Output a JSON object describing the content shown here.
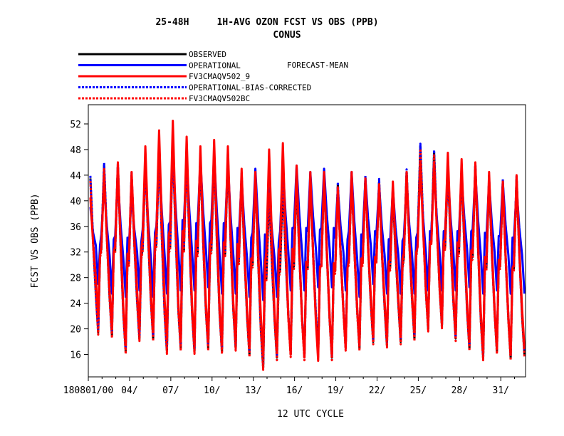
{
  "chart_data": {
    "type": "line",
    "title": "25-48H     1H-AVG OZON FCST VS OBS (PPB)",
    "subtitle": "CONUS",
    "xlabel": "12 UTC CYCLE",
    "ylabel": "FCST VS OBS (PPB)",
    "ylim": [
      12.5,
      55.0
    ],
    "yticks": [
      16,
      20,
      24,
      28,
      32,
      36,
      40,
      44,
      48,
      52
    ],
    "xlim": [
      0,
      31.8
    ],
    "xticks": [
      {
        "day": 0,
        "label": "180801/00"
      },
      {
        "day": 3,
        "label": "04/"
      },
      {
        "day": 6,
        "label": "07/"
      },
      {
        "day": 9,
        "label": "10/"
      },
      {
        "day": 12,
        "label": "13/"
      },
      {
        "day": 15,
        "label": "16/"
      },
      {
        "day": 18,
        "label": "19/"
      },
      {
        "day": 21,
        "label": "22/"
      },
      {
        "day": 24,
        "label": "25/"
      },
      {
        "day": 27,
        "label": "28/"
      },
      {
        "day": 30,
        "label": "31/"
      }
    ],
    "legend_extra": "FORECAST-MEAN",
    "daily_max": {
      "observed": [
        43.5,
        45.5,
        45.5,
        44,
        46.5,
        48,
        49,
        47.5,
        47,
        47.5,
        47,
        44,
        44,
        41.5,
        43,
        43.5,
        43.5,
        44,
        42.5,
        44,
        43.5,
        43,
        41.5,
        44.5,
        48.5,
        47.5,
        45,
        45,
        45.5,
        43.5,
        43,
        43.5
      ],
      "operational": [
        39,
        42.5,
        43.5,
        41,
        45,
        47,
        48,
        47,
        46.5,
        47.5,
        46,
        43.5,
        45,
        42,
        45.5,
        45.5,
        44.5,
        45,
        42,
        44.5,
        43.5,
        42.5,
        42,
        43,
        44.5,
        44.5,
        44.5,
        44,
        44.5,
        43,
        43,
        42
      ],
      "fv3": [
        40.5,
        44,
        46,
        44.5,
        48.5,
        51,
        52.5,
        50,
        48.5,
        49.5,
        48.5,
        45,
        44.5,
        48,
        49,
        45.5,
        44.5,
        44.5,
        42,
        44.5,
        43.5,
        42.5,
        43,
        44.5,
        46,
        46,
        47.5,
        46.5,
        46,
        44.5,
        43,
        44
      ]
    },
    "daily_min": {
      "observed": [
        19.5,
        19,
        16.5,
        18.5,
        18.5,
        16.5,
        17,
        16.5,
        17,
        16.5,
        17,
        16,
        14,
        15.5,
        16,
        15.5,
        16,
        15.5,
        17,
        17,
        18,
        17.5,
        18,
        18.5,
        20,
        20.5,
        18.5,
        17,
        15.5,
        16.5,
        15.5,
        16
      ],
      "operational": [
        27,
        25.5,
        25,
        26,
        25,
        25.5,
        26,
        26,
        26.5,
        25.5,
        25.5,
        25,
        24.5,
        25,
        26,
        26,
        26.5,
        26.5,
        26,
        25,
        27,
        25.5,
        25.5,
        25.5,
        26,
        26,
        26,
        26.5,
        25.5,
        26,
        25.5,
        25.5
      ],
      "fv3": [
        22,
        20,
        17.5,
        20,
        19.5,
        18.5,
        18,
        17.5,
        18,
        17.5,
        18,
        17,
        16,
        16.5,
        16,
        15.5,
        15,
        16,
        17,
        17.5,
        19,
        18.5,
        19,
        19.5,
        20.5,
        21,
        19.5,
        18,
        16.5,
        17,
        16,
        17
      ]
    },
    "series": [
      {
        "name": "OBSERVED",
        "color": "#000000",
        "dash": "solid",
        "base": "observed",
        "offset": 0
      },
      {
        "name": "OPERATIONAL",
        "color": "#0000ff",
        "dash": "solid",
        "base": "operational",
        "offset": 0
      },
      {
        "name": "FV3CMAQV502_9",
        "color": "#ff0000",
        "dash": "solid",
        "base": "fv3",
        "offset": 0
      },
      {
        "name": "OPERATIONAL-BIAS-CORRECTED",
        "color": "#0000ff",
        "dash": "dashed",
        "base": "observed",
        "offset": 0.4
      },
      {
        "name": "FV3CMAQV502BC",
        "color": "#ff0000",
        "dash": "dashed",
        "base": "observed",
        "offset": -0.4
      }
    ]
  }
}
